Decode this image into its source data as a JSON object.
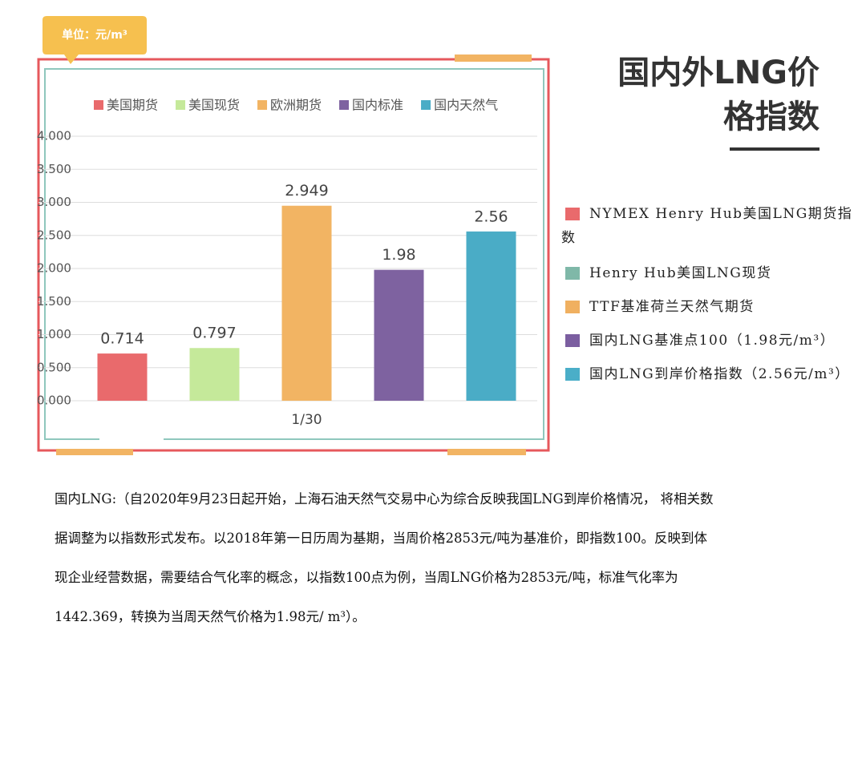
{
  "unit_badge": "单位：元/m³",
  "title_lines": [
    "国内外LNG价",
    "格指数"
  ],
  "chart_data": {
    "type": "bar",
    "categories": [
      "1/30"
    ],
    "series": [
      {
        "name": "美国期货",
        "color": "#e96a6c",
        "values": [
          0.714
        ],
        "value_labels": [
          "0.714"
        ]
      },
      {
        "name": "美国现货",
        "color": "#c5e99a",
        "values": [
          0.797
        ],
        "value_labels": [
          "0.797"
        ]
      },
      {
        "name": "欧洲期货",
        "color": "#f2b463",
        "values": [
          2.949
        ],
        "value_labels": [
          "2.949"
        ]
      },
      {
        "name": "国内标准",
        "color": "#7e62a0",
        "values": [
          1.98
        ],
        "value_labels": [
          "1.98"
        ]
      },
      {
        "name": "国内天然气",
        "color": "#4aacc6",
        "values": [
          2.56
        ],
        "value_labels": [
          "2.56"
        ]
      }
    ],
    "ylim": [
      0,
      4
    ],
    "yticks": [
      {
        "value": 0,
        "label": "0.000"
      },
      {
        "value": 0.5,
        "label": "0.500"
      },
      {
        "value": 1,
        "label": "1.000"
      },
      {
        "value": 1.5,
        "label": "1.500"
      },
      {
        "value": 2,
        "label": "2.000"
      },
      {
        "value": 2.5,
        "label": "2.500"
      },
      {
        "value": 3,
        "label": "3.000"
      },
      {
        "value": 3.5,
        "label": "3.500"
      },
      {
        "value": 4,
        "label": "4.000"
      }
    ],
    "grid": true,
    "legend": "top"
  },
  "notes": [
    {
      "color": "#e96a6c",
      "text": "NYMEX Henry Hub美国LNG期货指数"
    },
    {
      "color": "#7fb8a8",
      "text": "Henry Hub美国LNG现货"
    },
    {
      "color": "#f0b060",
      "text": "TTF基准荷兰天然气期货"
    },
    {
      "color": "#7b5ea0",
      "text": "国内LNG基准点100（1.98元/m³）"
    },
    {
      "color": "#4aaec8",
      "text": "国内LNG到岸价格指数（2.56元/m³）"
    }
  ],
  "paragraph_lines": [
    "国内LNG:（自2020年9月23日起开始，上海石油天然气交易中心为综合反映我国LNG到岸价格情况， 将相关数",
    "据调整为以指数形式发布。以2018年第一日历周为基期，当周价格2853元/吨为基准价，即指数100。反映到体",
    "现企业经营数据，需要结合气化率的概念，以指数100点为例，当周LNG价格为2853元/吨，标准气化率为",
    "1442.369，转换为当周天然气价格为1.98元/ m³）。"
  ]
}
